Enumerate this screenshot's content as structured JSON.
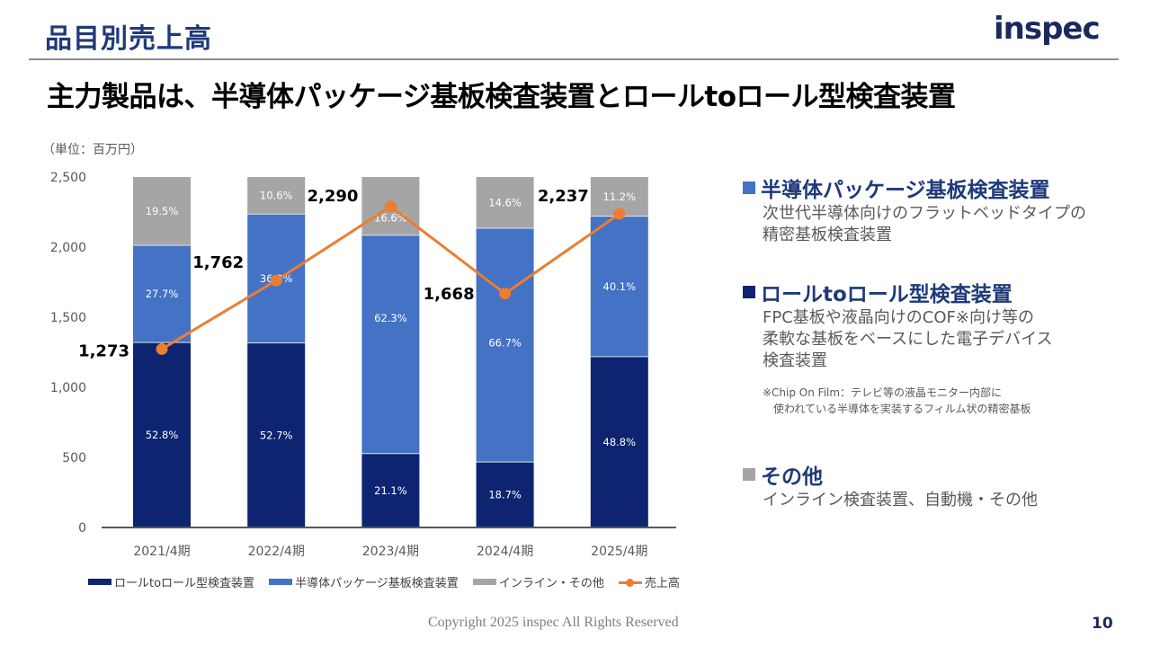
{
  "header": {
    "title": "品目別売上高",
    "logo": "inspec",
    "subtitle": "主力製品は、半導体パッケージ基板検査装置とロールtoロール型検査装置"
  },
  "chart_data": {
    "type": "bar",
    "subtype": "100%-stacked-bar-with-line",
    "unit_label": "（単位：百万円）",
    "categories": [
      "2021/4期",
      "2022/4期",
      "2023/4期",
      "2024/4期",
      "2025/4期"
    ],
    "ylim": [
      0,
      2500
    ],
    "yticks": [
      0,
      500,
      1000,
      1500,
      2000,
      2500
    ],
    "ytick_labels": [
      "0",
      "500",
      "1,000",
      "1,500",
      "2,000",
      "2,500"
    ],
    "grid": false,
    "legend_position": "bottom",
    "series": [
      {
        "name": "ロールtoロール型検査装置",
        "kind": "bar-share",
        "color": "#0e2470",
        "values": [
          52.8,
          52.7,
          21.1,
          18.7,
          48.8
        ],
        "labels": [
          "52.8%",
          "52.7%",
          "21.1%",
          "18.7%",
          "48.8%"
        ]
      },
      {
        "name": "半導体パッケージ基板検査装置",
        "kind": "bar-share",
        "color": "#4472c4",
        "values": [
          27.7,
          36.8,
          62.3,
          66.7,
          40.1
        ],
        "labels": [
          "27.7%",
          "36.8%",
          "62.3%",
          "66.7%",
          "40.1%"
        ]
      },
      {
        "name": "インライン・その他",
        "kind": "bar-share",
        "color": "#a5a5a5",
        "values": [
          19.5,
          10.6,
          16.6,
          14.6,
          11.2
        ],
        "labels": [
          "19.5%",
          "10.6%",
          "16.6%",
          "14.6%",
          "11.2%"
        ]
      },
      {
        "name": "売上高",
        "kind": "line",
        "color": "#ed7d31",
        "values": [
          1273,
          1762,
          2290,
          1668,
          2237
        ],
        "labels": [
          "1,273",
          "1,762",
          "2,290",
          "1,668",
          "2,237"
        ]
      }
    ]
  },
  "descriptions": [
    {
      "title": "半導体パッケージ基板検査装置",
      "color": "#4472c4",
      "lines": [
        "次世代半導体向けのフラットベッドタイプの",
        "精密基板検査装置"
      ]
    },
    {
      "title": "ロールtoロール型検査装置",
      "color": "#0e2470",
      "lines": [
        "FPC基板や液晶向けのCOF※向け等の",
        "柔軟な基板をベースにした電子デバイス",
        "検査装置"
      ],
      "footnote": [
        "※Chip On Film：テレビ等の液晶モニター内部に",
        "　使われている半導体を実装するフィルム状の精密基板"
      ]
    },
    {
      "title": "その他",
      "color": "#a5a5a5",
      "lines": [
        "インライン検査装置、自動機・その他"
      ]
    }
  ],
  "footer": {
    "copyright": "Copyright 2025 inspec All Rights Reserved",
    "page_number": "10"
  }
}
